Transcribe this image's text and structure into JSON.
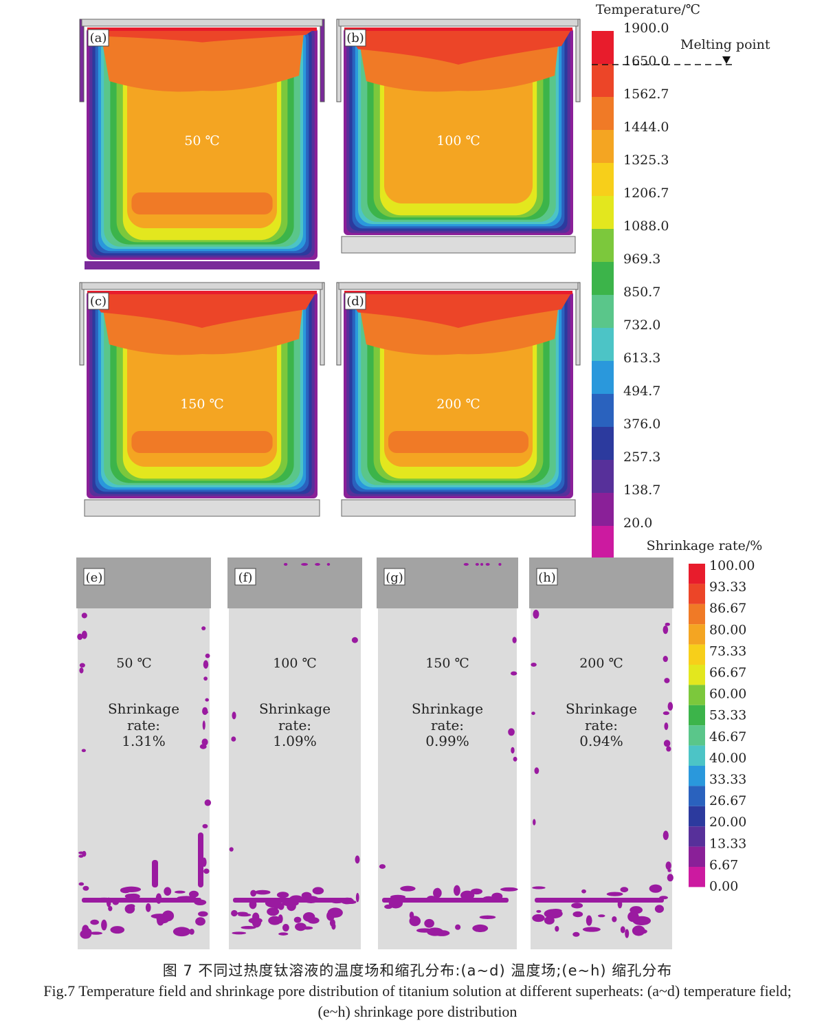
{
  "figure_number": "Fig.7",
  "caption": {
    "cn": "图 7  不同过热度钛溶液的温度场和缩孔分布:(a~d) 温度场;(e~h) 缩孔分布",
    "en_line1": "Fig.7  Temperature field and shrinkage pore distribution of titanium solution at different superheats: (a~d) temperature field;",
    "en_line2": "(e~h) shrinkage pore distribution"
  },
  "temperature_panels": [
    {
      "id": "(a)",
      "superheat": "50 ℃"
    },
    {
      "id": "(b)",
      "superheat": "100 ℃"
    },
    {
      "id": "(c)",
      "superheat": "150 ℃"
    },
    {
      "id": "(d)",
      "superheat": "200 ℃"
    }
  ],
  "temperature_legend": {
    "title": "Temperature/℃",
    "ticks": [
      "1900.0",
      "1650.0",
      "1562.7",
      "1444.0",
      "1325.3",
      "1206.7",
      "1088.0",
      "969.3",
      "850.7",
      "732.0",
      "613.3",
      "494.7",
      "376.0",
      "257.3",
      "138.7",
      "20.0"
    ],
    "colors": [
      "#e81c2c",
      "#ec4528",
      "#f07a26",
      "#f4a522",
      "#f7cf1a",
      "#e3e71e",
      "#7cc83c",
      "#3cb44a",
      "#5ac68a",
      "#4cc4c6",
      "#2a98dc",
      "#2a62be",
      "#2c3a9e",
      "#57309a",
      "#8a2098",
      "#cc1aa0"
    ],
    "melting_point_label": "Melting point"
  },
  "shrinkage_panels": [
    {
      "id": "(e)",
      "superheat": "50 ℃",
      "label": "Shrinkage",
      "sublabel": "rate:",
      "rate": "1.31%"
    },
    {
      "id": "(f)",
      "superheat": "100 ℃",
      "label": "Shrinkage",
      "sublabel": "rate:",
      "rate": "1.09%"
    },
    {
      "id": "(g)",
      "superheat": "150 ℃",
      "label": "Shrinkage",
      "sublabel": "rate:",
      "rate": "0.99%"
    },
    {
      "id": "(h)",
      "superheat": "200 ℃",
      "label": "Shrinkage",
      "sublabel": "rate:",
      "rate": "0.94%"
    }
  ],
  "shrinkage_legend": {
    "title": "Shrinkage rate/%",
    "ticks": [
      "100.00",
      "93.33",
      "86.67",
      "80.00",
      "73.33",
      "66.67",
      "60.00",
      "53.33",
      "46.67",
      "40.00",
      "33.33",
      "26.67",
      "20.00",
      "13.33",
      "6.67",
      "0.00"
    ],
    "colors": [
      "#e81c2c",
      "#ec4528",
      "#f07a26",
      "#f4a522",
      "#f7cf1a",
      "#e3e71e",
      "#7cc83c",
      "#3cb44a",
      "#5ac68a",
      "#4cc4c6",
      "#2a98dc",
      "#2a62be",
      "#2c3a9e",
      "#57309a",
      "#8a2098",
      "#cc1aa0"
    ]
  },
  "pore_color": "#9a1aa0"
}
